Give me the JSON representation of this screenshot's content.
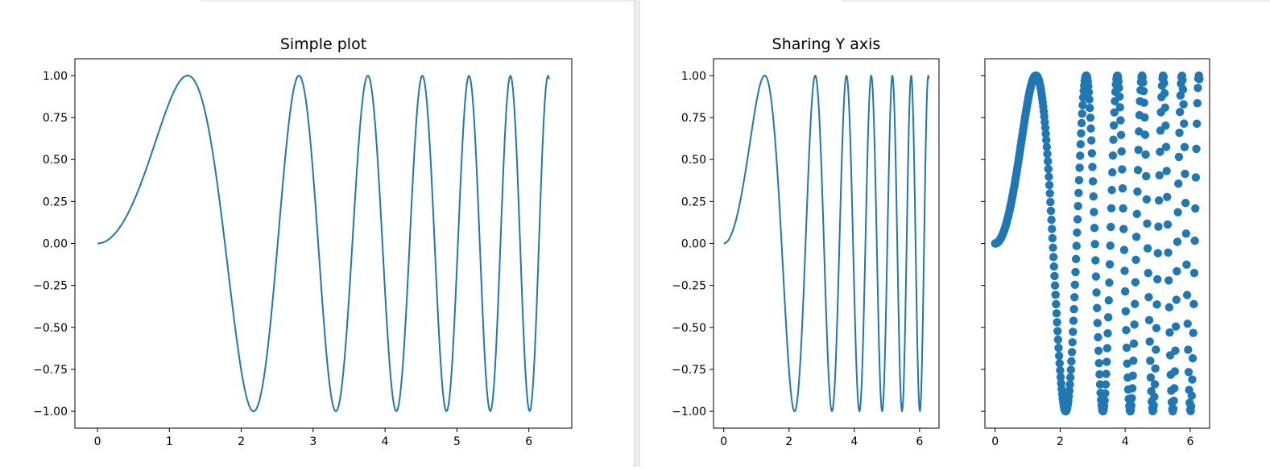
{
  "chart_data": [
    {
      "type": "line",
      "title": "Simple plot",
      "xlabel": "",
      "ylabel": "",
      "function": "y = sin(x^2)",
      "x_range": [
        0,
        6.283
      ],
      "samples": 400,
      "xlim": [
        -0.314,
        6.597
      ],
      "ylim": [
        -1.1,
        1.1
      ],
      "xticks": [
        "0",
        "1",
        "2",
        "3",
        "4",
        "5",
        "6"
      ],
      "yticks": [
        "1.00",
        "0.75",
        "0.50",
        "0.25",
        "0.00",
        "−0.25",
        "−0.50",
        "−0.75",
        "−1.00"
      ],
      "color": "#1f77b4",
      "grid": false
    },
    {
      "type": "line",
      "title": "Sharing Y axis",
      "xlabel": "",
      "ylabel": "",
      "function": "y = sin(x^2)",
      "x_range": [
        0,
        6.283
      ],
      "samples": 400,
      "xlim": [
        -0.314,
        6.597
      ],
      "ylim": [
        -1.1,
        1.1
      ],
      "xticks": [
        "0",
        "2",
        "4",
        "6"
      ],
      "yticks": [
        "1.00",
        "0.75",
        "0.50",
        "0.25",
        "0.00",
        "−0.25",
        "−0.50",
        "−0.75",
        "−1.00"
      ],
      "color": "#1f77b4",
      "grid": false
    },
    {
      "type": "scatter",
      "title": "",
      "xlabel": "",
      "ylabel": "",
      "function": "y = sin(x^2)",
      "x_range": [
        0,
        6.283
      ],
      "samples": 400,
      "xlim": [
        -0.314,
        6.597
      ],
      "ylim": [
        -1.1,
        1.1
      ],
      "sharey": true,
      "xticks": [
        "0",
        "2",
        "4",
        "6"
      ],
      "color": "#1f77b4",
      "grid": false
    }
  ]
}
